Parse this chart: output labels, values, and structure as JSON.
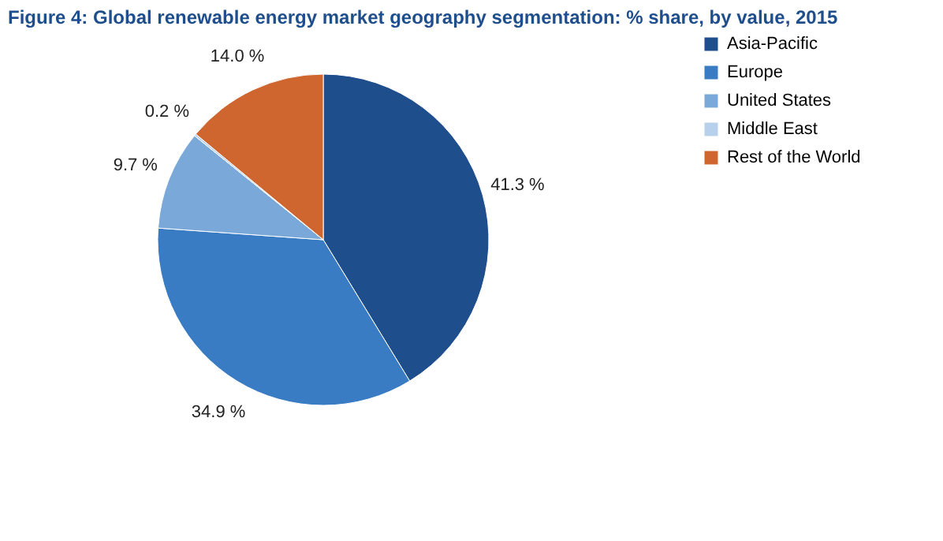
{
  "chart_data": {
    "type": "pie",
    "title": "Figure 4: Global renewable energy market geography segmentation: % share, by value, 2015",
    "categories": [
      "Asia-Pacific",
      "Europe",
      "United States",
      "Middle East",
      "Rest of the World"
    ],
    "values": [
      41.3,
      34.9,
      9.7,
      0.2,
      14.0
    ],
    "value_labels": [
      "41.3 %",
      "34.9 %",
      "9.7 %",
      "0.2 %",
      "14.0 %"
    ],
    "colors": [
      "#1f4e8c",
      "#3a7cc4",
      "#7aa9d9",
      "#b7d1ec",
      "#d0662f"
    ],
    "legend": "top right"
  }
}
